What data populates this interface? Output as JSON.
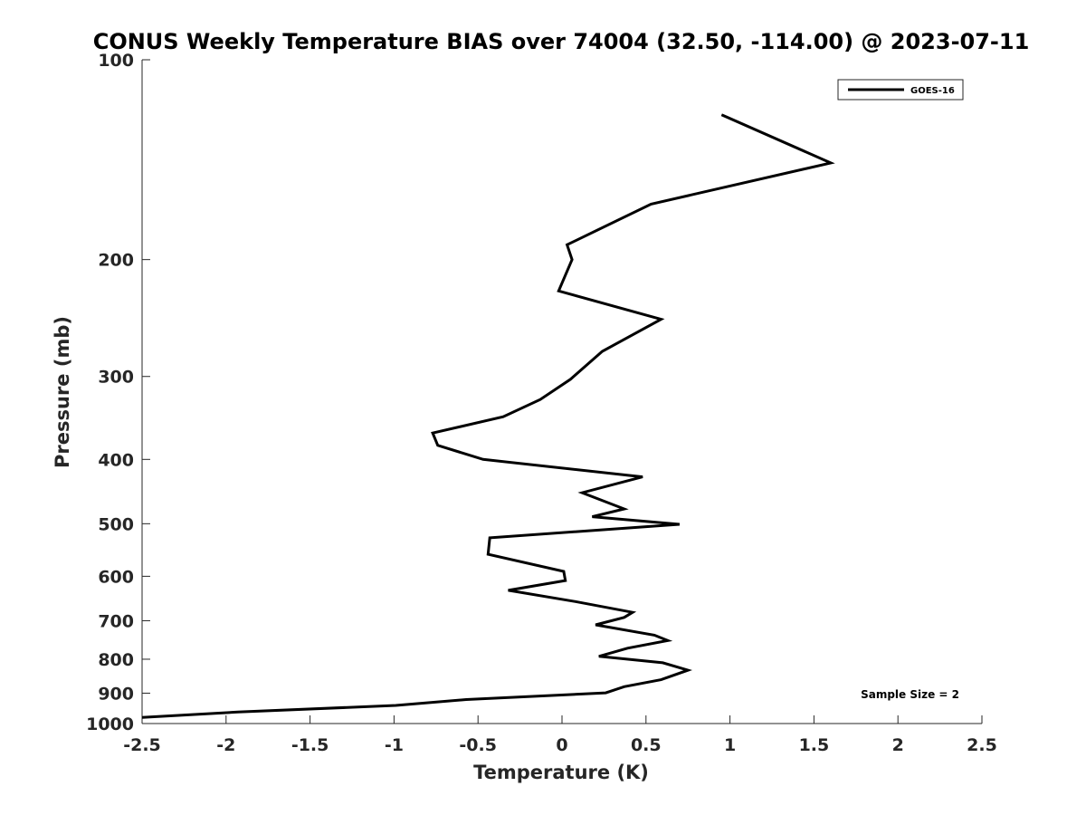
{
  "chart_data": {
    "type": "line",
    "title": "CONUS Weekly Temperature BIAS over 74004 (32.50, -114.00) @ 2023-07-11",
    "xlabel": "Temperature (K)",
    "ylabel": "Pressure (mb)",
    "xlim": [
      -2.5,
      2.5
    ],
    "ylim": [
      100,
      1000
    ],
    "yscale": "log",
    "yreversed": true,
    "grid": false,
    "x_ticks": [
      -2.5,
      -2,
      -1.5,
      -1,
      -0.5,
      0,
      0.5,
      1,
      1.5,
      2,
      2.5
    ],
    "x_tick_labels": [
      "-2.5",
      "-2",
      "-1.5",
      "-1",
      "-0.5",
      "0",
      "0.5",
      "1",
      "1.5",
      "2",
      "2.5"
    ],
    "y_ticks": [
      100,
      200,
      300,
      400,
      500,
      600,
      700,
      800,
      900,
      1000
    ],
    "y_tick_labels": [
      "100",
      "200",
      "300",
      "400",
      "500",
      "600",
      "700",
      "800",
      "900",
      "1000"
    ],
    "legend": {
      "position": "top-right",
      "entries": [
        "GOES-16"
      ]
    },
    "annotation": "Sample Size = 2",
    "color": "#000000",
    "series": [
      {
        "name": "GOES-16",
        "points": [
          [
            0.95,
            121
          ],
          [
            1.6,
            143
          ],
          [
            0.53,
            165
          ],
          [
            0.03,
            190
          ],
          [
            0.06,
            200
          ],
          [
            -0.02,
            223
          ],
          [
            0.59,
            246
          ],
          [
            0.24,
            275
          ],
          [
            0.05,
            303
          ],
          [
            -0.13,
            325
          ],
          [
            -0.35,
            345
          ],
          [
            -0.77,
            365
          ],
          [
            -0.74,
            381
          ],
          [
            -0.47,
            400
          ],
          [
            0.48,
            425
          ],
          [
            0.12,
            449
          ],
          [
            0.37,
            475
          ],
          [
            0.18,
            488
          ],
          [
            0.7,
            501
          ],
          [
            -0.43,
            525
          ],
          [
            -0.44,
            556
          ],
          [
            0.01,
            590
          ],
          [
            0.02,
            609
          ],
          [
            -0.32,
            630
          ],
          [
            0.08,
            655
          ],
          [
            0.42,
            680
          ],
          [
            0.37,
            692
          ],
          [
            0.2,
            710
          ],
          [
            0.55,
            736
          ],
          [
            0.63,
            750
          ],
          [
            0.39,
            770
          ],
          [
            0.22,
            792
          ],
          [
            0.6,
            810
          ],
          [
            0.75,
            831
          ],
          [
            0.59,
            859
          ],
          [
            0.37,
            880
          ],
          [
            0.26,
            899
          ],
          [
            -0.57,
            920
          ],
          [
            -0.99,
            939
          ],
          [
            -1.93,
            961
          ],
          [
            -2.5,
            979
          ]
        ]
      }
    ]
  }
}
